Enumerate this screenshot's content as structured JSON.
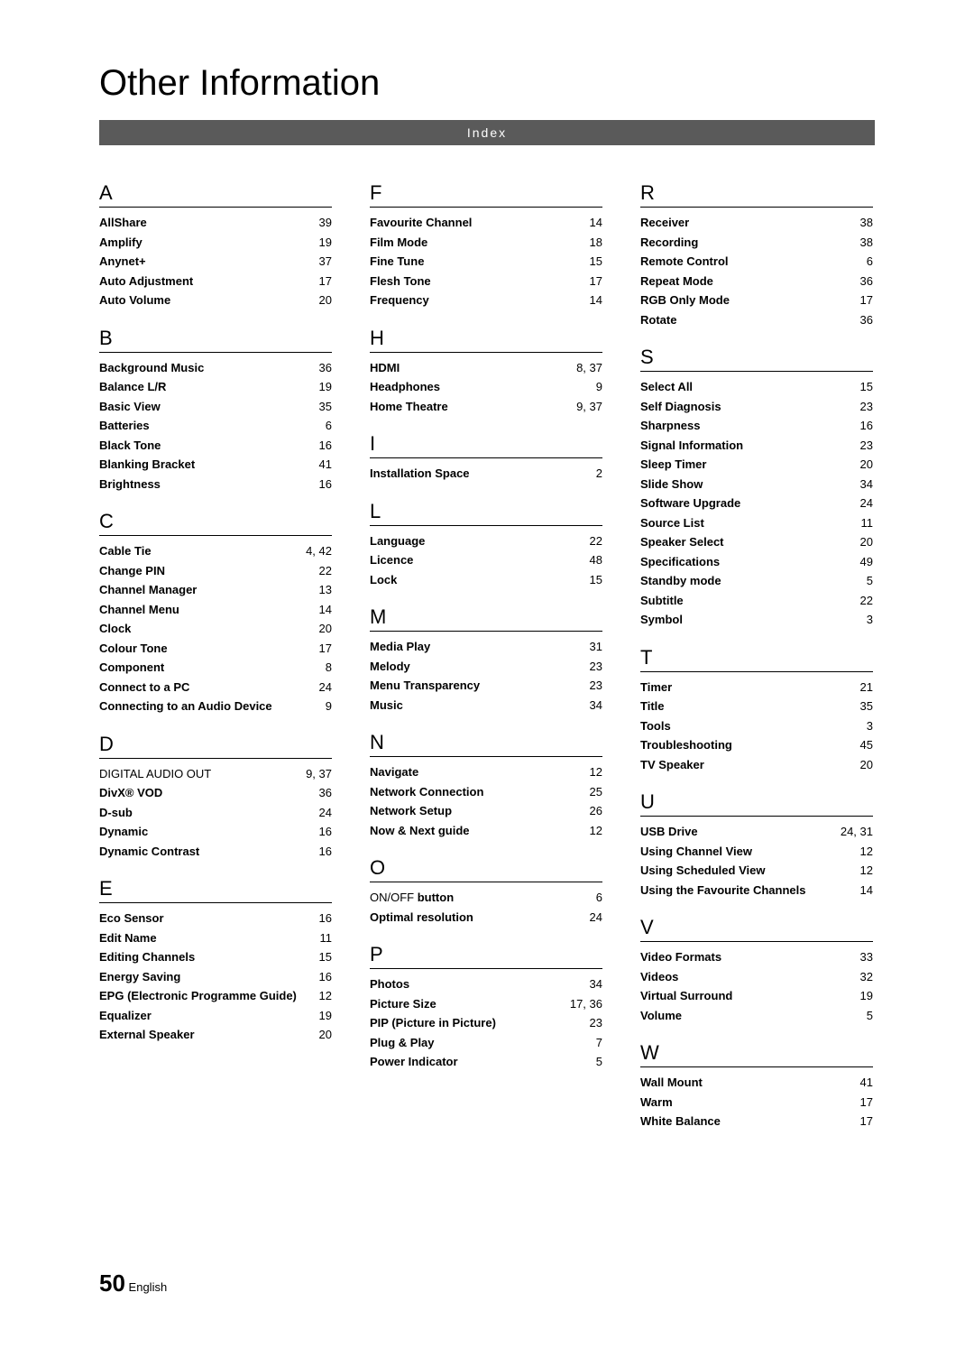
{
  "title": "Other Information",
  "index_bar_label": "Index",
  "footer": {
    "page_number": "50",
    "language_label": "English"
  },
  "columns": [
    [
      {
        "letter": "A",
        "items": [
          {
            "label": "AllShare",
            "page": "39"
          },
          {
            "label": "Amplify",
            "page": "19"
          },
          {
            "label": "Anynet+",
            "page": "37"
          },
          {
            "label": "Auto Adjustment",
            "page": "17"
          },
          {
            "label": "Auto Volume",
            "page": "20"
          }
        ]
      },
      {
        "letter": "B",
        "items": [
          {
            "label": "Background Music",
            "page": "36"
          },
          {
            "label": "Balance L/R",
            "page": "19"
          },
          {
            "label": "Basic View",
            "page": "35"
          },
          {
            "label": "Batteries",
            "page": "6"
          },
          {
            "label": "Black Tone",
            "page": "16"
          },
          {
            "label": "Blanking Bracket",
            "page": "41"
          },
          {
            "label": "Brightness",
            "page": "16"
          }
        ]
      },
      {
        "letter": "C",
        "items": [
          {
            "label": "Cable Tie",
            "page": "4, 42"
          },
          {
            "label": "Change PIN",
            "page": "22"
          },
          {
            "label": "Channel Manager",
            "page": "13"
          },
          {
            "label": "Channel Menu",
            "page": "14"
          },
          {
            "label": "Clock",
            "page": "20"
          },
          {
            "label": "Colour Tone",
            "page": "17"
          },
          {
            "label": "Component",
            "page": "8"
          },
          {
            "label": "Connect to a PC",
            "page": "24"
          },
          {
            "label": "Connecting to an Audio Device",
            "page": "9"
          }
        ]
      },
      {
        "letter": "D",
        "items": [
          {
            "label": "DIGITAL AUDIO OUT",
            "page": "9, 37",
            "nonbold": true
          },
          {
            "label": "DivX® VOD",
            "page": "36"
          },
          {
            "label": "D-sub",
            "page": "24"
          },
          {
            "label": "Dynamic",
            "page": "16"
          },
          {
            "label": "Dynamic Contrast",
            "page": "16"
          }
        ]
      },
      {
        "letter": "E",
        "items": [
          {
            "label": "Eco Sensor",
            "page": "16"
          },
          {
            "label": "Edit Name",
            "page": "11"
          },
          {
            "label": "Editing Channels",
            "page": "15"
          },
          {
            "label": "Energy Saving",
            "page": "16"
          },
          {
            "label": "EPG (Electronic Programme Guide)",
            "page": "12"
          },
          {
            "label": "Equalizer",
            "page": "19"
          },
          {
            "label": "External Speaker",
            "page": "20"
          }
        ]
      }
    ],
    [
      {
        "letter": "F",
        "items": [
          {
            "label": "Favourite Channel",
            "page": "14"
          },
          {
            "label": "Film Mode",
            "page": "18"
          },
          {
            "label": "Fine Tune",
            "page": "15"
          },
          {
            "label": "Flesh Tone",
            "page": "17"
          },
          {
            "label": "Frequency",
            "page": "14"
          }
        ]
      },
      {
        "letter": "H",
        "items": [
          {
            "label": "HDMI",
            "page": "8, 37"
          },
          {
            "label": "Headphones",
            "page": "9"
          },
          {
            "label": "Home Theatre",
            "page": "9, 37"
          }
        ]
      },
      {
        "letter": "I",
        "items": [
          {
            "label": "Installation Space",
            "page": "2"
          }
        ]
      },
      {
        "letter": "L",
        "items": [
          {
            "label": "Language",
            "page": "22"
          },
          {
            "label": "Licence",
            "page": "48"
          },
          {
            "label": "Lock",
            "page": "15"
          }
        ]
      },
      {
        "letter": "M",
        "items": [
          {
            "label": "Media Play",
            "page": "31"
          },
          {
            "label": "Melody",
            "page": "23"
          },
          {
            "label": "Menu Transparency",
            "page": "23"
          },
          {
            "label": "Music",
            "page": "34"
          }
        ]
      },
      {
        "letter": "N",
        "items": [
          {
            "label": "Navigate",
            "page": "12"
          },
          {
            "label": "Network Connection",
            "page": "25"
          },
          {
            "label": "Network Setup",
            "page": "26"
          },
          {
            "label": "Now & Next guide",
            "page": "12"
          }
        ]
      },
      {
        "letter": "O",
        "items": [
          {
            "label": "ON/OFF button",
            "page": "6",
            "mixbold": "ON/OFF"
          },
          {
            "label": "Optimal resolution",
            "page": "24"
          }
        ]
      },
      {
        "letter": "P",
        "items": [
          {
            "label": "Photos",
            "page": "34"
          },
          {
            "label": "Picture Size",
            "page": "17, 36"
          },
          {
            "label": "PIP (Picture in Picture)",
            "page": "23"
          },
          {
            "label": "Plug & Play",
            "page": "7"
          },
          {
            "label": "Power Indicator",
            "page": "5"
          }
        ]
      }
    ],
    [
      {
        "letter": "R",
        "items": [
          {
            "label": "Receiver",
            "page": "38"
          },
          {
            "label": "Recording",
            "page": "38"
          },
          {
            "label": "Remote Control",
            "page": "6"
          },
          {
            "label": "Repeat Mode",
            "page": "36"
          },
          {
            "label": "RGB Only Mode",
            "page": "17"
          },
          {
            "label": "Rotate",
            "page": "36"
          }
        ]
      },
      {
        "letter": "S",
        "items": [
          {
            "label": "Select All",
            "page": "15"
          },
          {
            "label": "Self Diagnosis",
            "page": "23"
          },
          {
            "label": "Sharpness",
            "page": "16"
          },
          {
            "label": "Signal Information",
            "page": "23"
          },
          {
            "label": "Sleep Timer",
            "page": "20"
          },
          {
            "label": "Slide Show",
            "page": "34"
          },
          {
            "label": "Software Upgrade",
            "page": "24"
          },
          {
            "label": "Source List",
            "page": "11"
          },
          {
            "label": "Speaker Select",
            "page": "20"
          },
          {
            "label": "Specifications",
            "page": "49"
          },
          {
            "label": "Standby mode",
            "page": "5"
          },
          {
            "label": "Subtitle",
            "page": "22"
          },
          {
            "label": "Symbol",
            "page": "3"
          }
        ]
      },
      {
        "letter": "T",
        "items": [
          {
            "label": "Timer",
            "page": "21"
          },
          {
            "label": "Title",
            "page": "35"
          },
          {
            "label": "Tools",
            "page": "3"
          },
          {
            "label": "Troubleshooting",
            "page": "45"
          },
          {
            "label": "TV Speaker",
            "page": "20"
          }
        ]
      },
      {
        "letter": "U",
        "items": [
          {
            "label": "USB Drive",
            "page": "24, 31"
          },
          {
            "label": "Using Channel View",
            "page": "12"
          },
          {
            "label": "Using Scheduled View",
            "page": "12"
          },
          {
            "label": "Using the Favourite Channels",
            "page": "14"
          }
        ]
      },
      {
        "letter": "V",
        "items": [
          {
            "label": "Video Formats",
            "page": "33"
          },
          {
            "label": "Videos",
            "page": "32"
          },
          {
            "label": "Virtual Surround",
            "page": "19"
          },
          {
            "label": "Volume",
            "page": "5"
          }
        ]
      },
      {
        "letter": "W",
        "items": [
          {
            "label": "Wall Mount",
            "page": "41"
          },
          {
            "label": "Warm",
            "page": "17"
          },
          {
            "label": "White Balance",
            "page": "17"
          }
        ]
      }
    ]
  ]
}
